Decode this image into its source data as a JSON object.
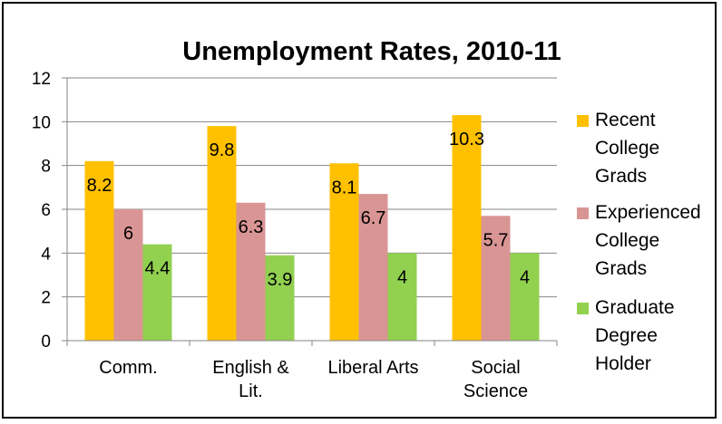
{
  "chart_data": {
    "type": "bar",
    "title": "Unemployment Rates, 2010-11",
    "categories": [
      "Comm.",
      "English & Lit.",
      "Liberal Arts",
      "Social Science"
    ],
    "series": [
      {
        "name": "Recent College Grads",
        "color": "#FFC000",
        "values": [
          8.2,
          9.8,
          8.1,
          10.3
        ]
      },
      {
        "name": "Experienced College Grads",
        "color": "#D99594",
        "values": [
          6,
          6.3,
          6.7,
          5.7
        ]
      },
      {
        "name": "Graduate Degree Holder",
        "color": "#92D050",
        "values": [
          4.4,
          3.9,
          4,
          4
        ]
      }
    ],
    "ylim": [
      0,
      12
    ],
    "yticks": [
      0,
      2,
      4,
      6,
      8,
      10,
      12
    ],
    "grid": true,
    "legend": "right",
    "xlabel": "",
    "ylabel": ""
  }
}
